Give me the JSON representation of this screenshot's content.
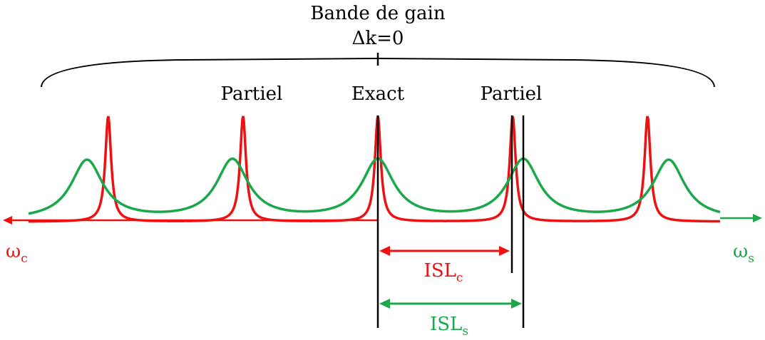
{
  "title": "Bande de gain",
  "phase_match": "Δk=0",
  "labels": {
    "left_partial": "Partiel",
    "center_exact": "Exact",
    "right_partial": "Partiel"
  },
  "axes": {
    "omega_c": {
      "main": "ω",
      "sub": "c"
    },
    "omega_s": {
      "main": "ω",
      "sub": "s"
    }
  },
  "isl_c": {
    "main": "ISL",
    "sub": "c"
  },
  "isl_s": {
    "main": "ISL",
    "sub": "s"
  },
  "colors": {
    "red": "#ee1111",
    "green": "#1aa84a",
    "black": "#000000"
  },
  "spectra": {
    "red_peaks": [
      1,
      2,
      3,
      4,
      5
    ],
    "green_peaks": [
      1,
      2,
      3,
      4,
      5
    ],
    "red_spacing_ratio": 0.927,
    "green_spacing_ratio": 1.0,
    "coincident_peak_index": 3
  }
}
